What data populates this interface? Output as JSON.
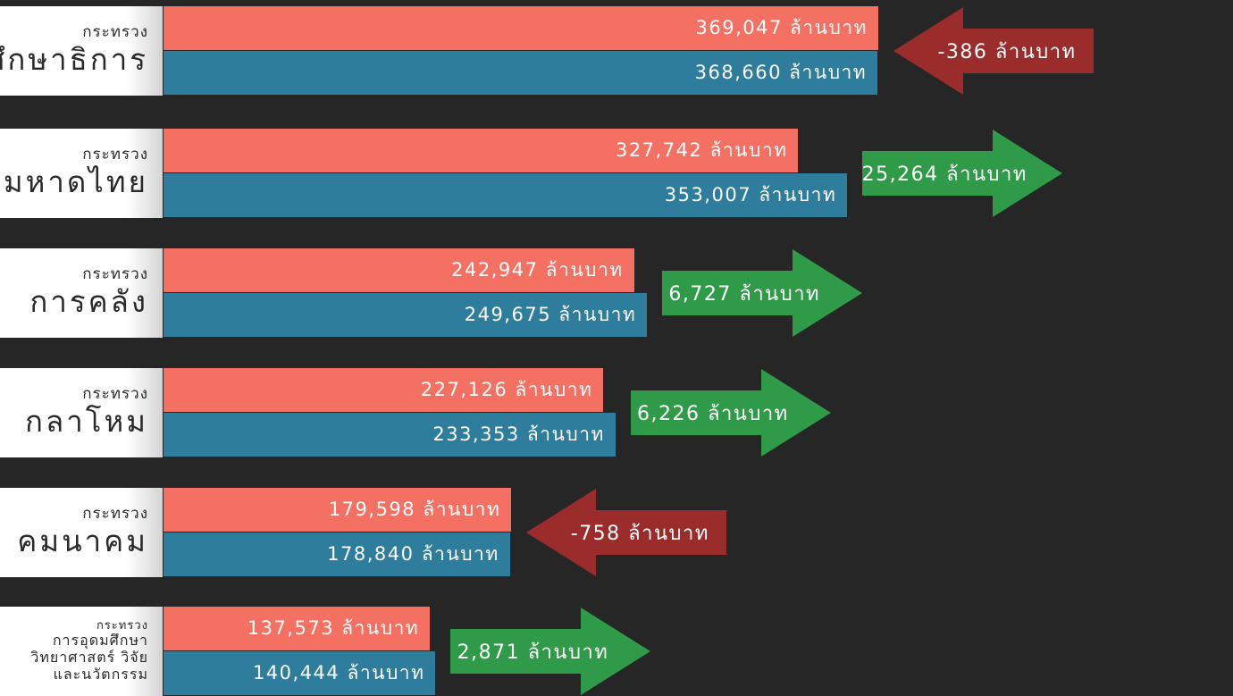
{
  "chart_data": {
    "type": "bar",
    "orientation": "horizontal",
    "unit": "ล้านบาท",
    "colors": {
      "series_a": "#f37062",
      "series_b": "#2e7d9c",
      "increase": "#2f9a48",
      "decrease": "#9b2c2c"
    },
    "rows": [
      {
        "prefix": "กระทรวง",
        "name_lines": [
          "ศึกษาธิการ"
        ],
        "value_a": 369047,
        "value_b": 368660,
        "label_a": "369,047 ล้านบาท",
        "label_b": "368,660 ล้านบาท",
        "change": -386,
        "change_label": "-386 ล้านบาท"
      },
      {
        "prefix": "กระทรวง",
        "name_lines": [
          "มหาดไทย"
        ],
        "value_a": 327742,
        "value_b": 353007,
        "label_a": "327,742 ล้านบาท",
        "label_b": "353,007 ล้านบาท",
        "change": 25264,
        "change_label": "25,264 ล้านบาท"
      },
      {
        "prefix": "กระทรวง",
        "name_lines": [
          "การคลัง"
        ],
        "value_a": 242947,
        "value_b": 249675,
        "label_a": "242,947 ล้านบาท",
        "label_b": "249,675 ล้านบาท",
        "change": 6727,
        "change_label": "6,727 ล้านบาท"
      },
      {
        "prefix": "กระทรวง",
        "name_lines": [
          "กลาโหม"
        ],
        "value_a": 227126,
        "value_b": 233353,
        "label_a": "227,126 ล้านบาท",
        "label_b": "233,353 ล้านบาท",
        "change": 6226,
        "change_label": "6,226 ล้านบาท"
      },
      {
        "prefix": "กระทรวง",
        "name_lines": [
          "คมนาคม"
        ],
        "value_a": 179598,
        "value_b": 178840,
        "label_a": "179,598 ล้านบาท",
        "label_b": "178,840 ล้านบาท",
        "change": -758,
        "change_label": "-758 ล้านบาท"
      },
      {
        "prefix": "กระทรวง",
        "name_lines": [
          "การอุดมศึกษา",
          "วิทยาศาสตร์ วิจัย",
          "และนวัตกรรม"
        ],
        "value_a": 137573,
        "value_b": 140444,
        "label_a": "137,573 ล้านบาท",
        "label_b": "140,444 ล้านบาท",
        "change": 2871,
        "change_label": "2,871 ล้านบาท"
      }
    ]
  }
}
